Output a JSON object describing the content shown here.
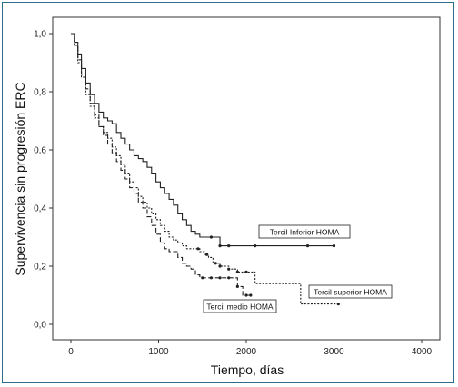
{
  "chart_data": {
    "type": "line",
    "xlabel": "Tiempo, días",
    "ylabel": "Supervivencia sin progresión ERC",
    "xlim": [
      0,
      4000
    ],
    "ylim": [
      0,
      1
    ],
    "x_ticks": [
      "0",
      "1000",
      "2000",
      "3000",
      "4000"
    ],
    "y_ticks": [
      "0,0",
      "0,2",
      "0,4",
      "0,6",
      "0,8",
      "1,0"
    ],
    "grid": false,
    "series": [
      {
        "name": "Tercil Inferior HOMA",
        "style": "solid",
        "color": "#222222",
        "x": [
          0,
          40,
          80,
          120,
          170,
          220,
          270,
          320,
          370,
          420,
          470,
          520,
          570,
          620,
          670,
          720,
          770,
          820,
          870,
          920,
          970,
          1020,
          1070,
          1120,
          1170,
          1220,
          1270,
          1320,
          1370,
          1420,
          1470,
          1520,
          1570,
          1620,
          1670,
          1700,
          1800,
          2100,
          2700,
          3000
        ],
        "y": [
          1.0,
          0.97,
          0.93,
          0.88,
          0.83,
          0.79,
          0.76,
          0.73,
          0.71,
          0.7,
          0.69,
          0.66,
          0.64,
          0.62,
          0.6,
          0.58,
          0.57,
          0.56,
          0.54,
          0.52,
          0.49,
          0.47,
          0.45,
          0.43,
          0.41,
          0.38,
          0.36,
          0.34,
          0.32,
          0.31,
          0.3,
          0.3,
          0.3,
          0.3,
          0.3,
          0.27,
          0.27,
          0.27,
          0.27,
          0.27
        ],
        "censored_x": [
          1600,
          1700,
          1800,
          2100,
          2700,
          3000
        ]
      },
      {
        "name": "Tercil medio HOMA",
        "style": "dash",
        "color": "#222222",
        "x": [
          0,
          40,
          80,
          120,
          170,
          220,
          270,
          320,
          370,
          420,
          470,
          520,
          570,
          620,
          670,
          720,
          770,
          820,
          870,
          920,
          970,
          1020,
          1070,
          1120,
          1170,
          1220,
          1270,
          1320,
          1370,
          1420,
          1470,
          1520,
          1600,
          1700,
          1800,
          1900,
          1960,
          2050
        ],
        "y": [
          1.0,
          0.96,
          0.91,
          0.86,
          0.81,
          0.76,
          0.72,
          0.68,
          0.65,
          0.62,
          0.59,
          0.56,
          0.53,
          0.5,
          0.47,
          0.45,
          0.42,
          0.4,
          0.37,
          0.34,
          0.31,
          0.28,
          0.26,
          0.25,
          0.25,
          0.23,
          0.21,
          0.2,
          0.19,
          0.17,
          0.16,
          0.16,
          0.16,
          0.16,
          0.16,
          0.13,
          0.1,
          0.1
        ],
        "censored_x": [
          1500,
          1600,
          1700,
          1800,
          1900,
          2000,
          2050
        ]
      },
      {
        "name": "Tercil superior HOMA",
        "style": "dot",
        "color": "#222222",
        "x": [
          0,
          40,
          80,
          120,
          170,
          220,
          270,
          320,
          370,
          420,
          470,
          520,
          570,
          620,
          670,
          720,
          770,
          820,
          870,
          920,
          970,
          1020,
          1070,
          1120,
          1170,
          1220,
          1270,
          1320,
          1370,
          1420,
          1470,
          1520,
          1570,
          1620,
          1700,
          1800,
          1900,
          2000,
          2100,
          2200,
          2400,
          2620,
          3050
        ],
        "y": [
          1.0,
          0.96,
          0.9,
          0.85,
          0.79,
          0.75,
          0.71,
          0.68,
          0.66,
          0.64,
          0.61,
          0.58,
          0.55,
          0.52,
          0.49,
          0.47,
          0.44,
          0.42,
          0.4,
          0.38,
          0.36,
          0.34,
          0.32,
          0.3,
          0.29,
          0.28,
          0.27,
          0.26,
          0.26,
          0.26,
          0.25,
          0.24,
          0.23,
          0.21,
          0.2,
          0.19,
          0.18,
          0.18,
          0.14,
          0.14,
          0.14,
          0.07,
          0.07
        ],
        "censored_x": [
          1450,
          1550,
          1650,
          1700,
          1800,
          1900,
          2000,
          3050
        ]
      }
    ],
    "legend_labels": {
      "inferior": "Tercil Inferior HOMA",
      "superior": "Tercil superior HOMA",
      "medio": "Tercil medio HOMA"
    }
  }
}
